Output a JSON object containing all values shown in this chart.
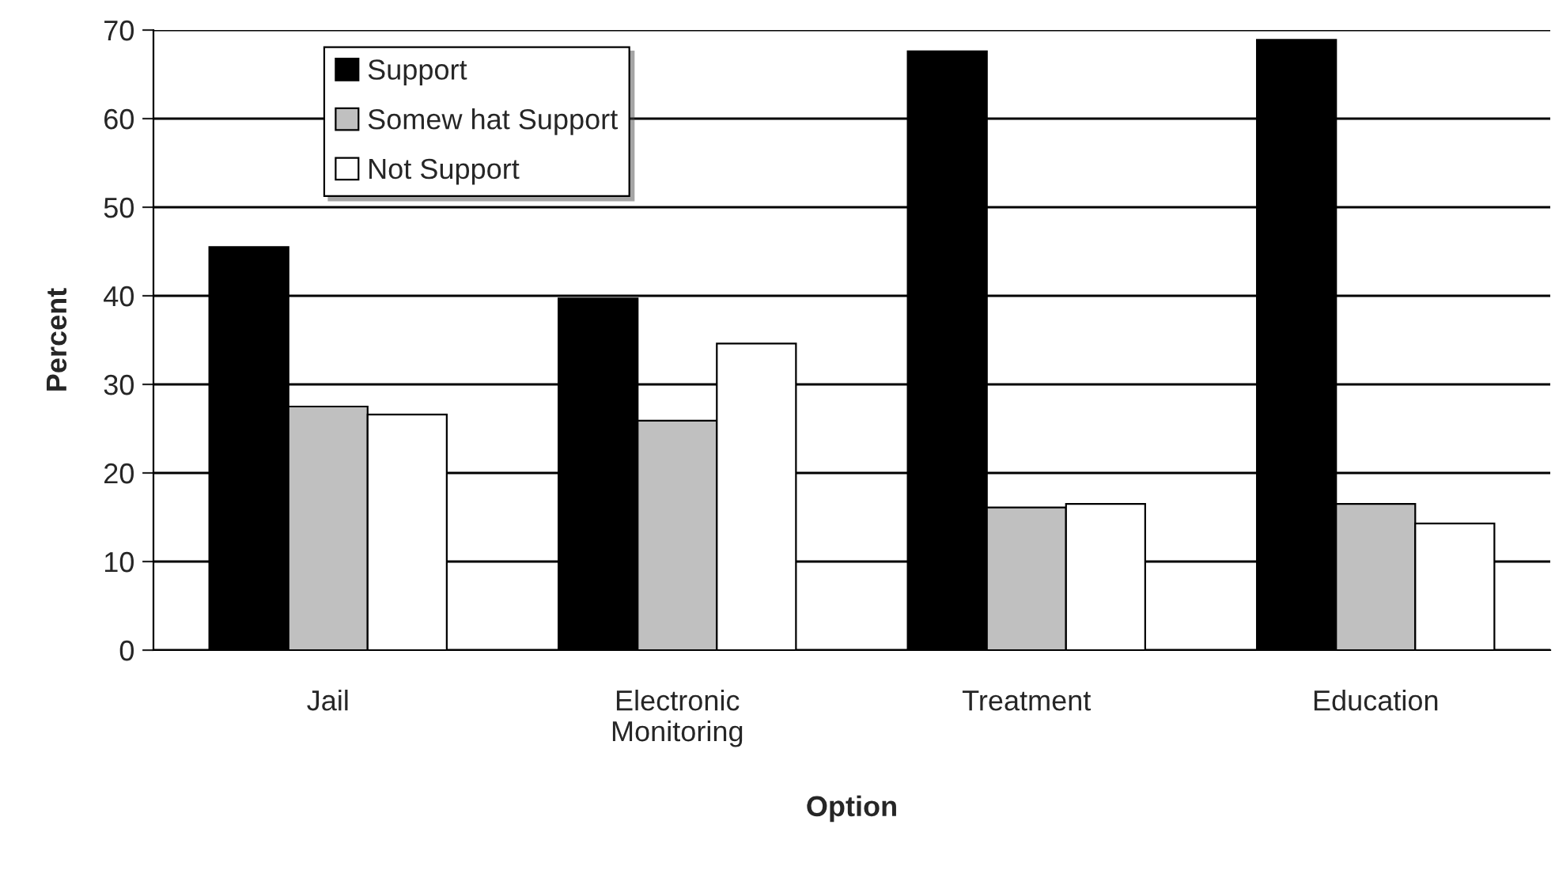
{
  "chart_data": {
    "type": "bar",
    "xlabel": "Option",
    "ylabel": "Percent",
    "categories": [
      "Jail",
      "Electronic\nMonitoring",
      "Treatment",
      "Education"
    ],
    "series": [
      {
        "name": "Support",
        "color": "#000000",
        "values": [
          45.5,
          39.7,
          67.6,
          68.9
        ]
      },
      {
        "name": "Somew hat Support",
        "color": "#c0c0c0",
        "values": [
          27.5,
          25.9,
          16.1,
          16.5
        ]
      },
      {
        "name": "Not Support",
        "color": "#ffffff",
        "values": [
          26.6,
          34.6,
          16.5,
          14.3
        ]
      }
    ],
    "ylim": [
      0,
      70
    ],
    "yticks": [
      0,
      10,
      20,
      30,
      40,
      50,
      60,
      70
    ],
    "grid": "y",
    "legend": "top left"
  }
}
